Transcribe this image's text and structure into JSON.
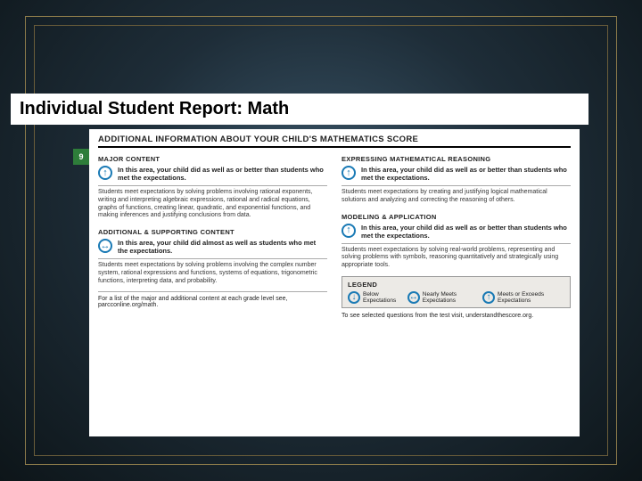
{
  "slide": {
    "title": "Individual Student Report: Math"
  },
  "report": {
    "heading": "ADDITIONAL INFORMATION ABOUT YOUR CHILD'S MATHEMATICS SCORE",
    "grade_tab": "9",
    "left": {
      "sec1": {
        "name": "MAJOR CONTENT",
        "perf": "In this area, your child did as well as or better than students who met the expectations.",
        "desc": "Students meet expectations by solving problems involving rational exponents, writing and interpreting algebraic expressions, rational and radical equations, graphs of functions, creating linear, quadratic, and exponential functions, and making inferences and justifying conclusions from data."
      },
      "sec2": {
        "name": "ADDITIONAL & SUPPORTING CONTENT",
        "perf": "In this area, your child did almost as well as students who met the expectations.",
        "desc": "Students meet expectations by solving problems involving the complex number system, rational expressions and functions, systems of equations, trigonometric functions, interpreting data, and probability."
      },
      "footnote": "For a list of the major and additional content at each grade level see, parcconline.org/math."
    },
    "right": {
      "sec1": {
        "name": "EXPRESSING MATHEMATICAL REASONING",
        "perf": "In this area, your child did as well as or better than students who met the expectations.",
        "desc": "Students meet expectations by creating and justifying logical mathematical solutions and analyzing and correcting the reasoning of others."
      },
      "sec2": {
        "name": "MODELING & APPLICATION",
        "perf": "In this area, your child did as well as or better than students who met the expectations.",
        "desc": "Students meet expectations by solving real-world problems, representing and solving problems with symbols, reasoning quantitatively and strategically using appropriate tools."
      },
      "legend": {
        "title": "LEGEND",
        "below": "Below Expectations",
        "nearly": "Nearly Meets Expectations",
        "meets": "Meets or Exceeds Expectations"
      },
      "bottom": "To see selected questions from the test visit, understandthescore.org."
    }
  },
  "colors": {
    "accent_blue": "#1a7ab5",
    "grade_green": "#2e7d3a",
    "frame_gold": "#8b7a4a"
  }
}
